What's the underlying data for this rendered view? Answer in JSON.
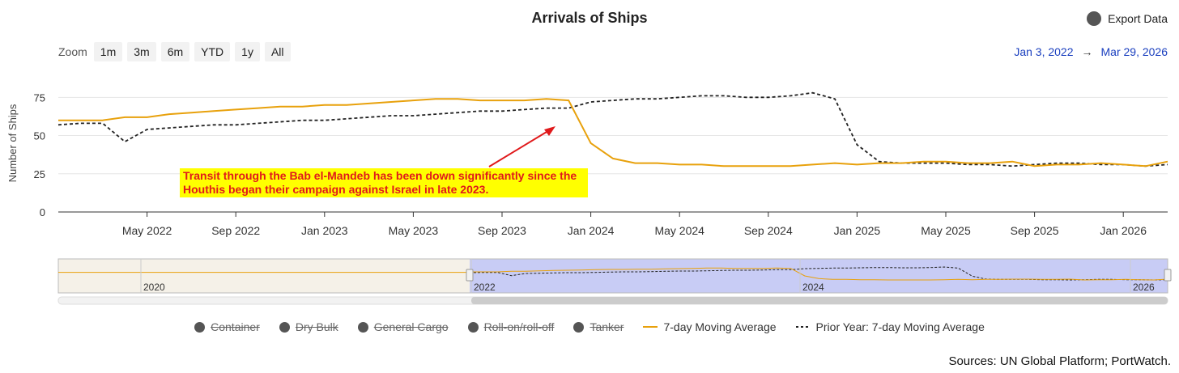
{
  "header": {
    "title": "Arrivals of Ships",
    "export_label": "Export Data"
  },
  "zoom": {
    "label": "Zoom",
    "buttons": [
      "1m",
      "3m",
      "6m",
      "YTD",
      "1y",
      "All"
    ]
  },
  "range": {
    "from": "Jan 3, 2022",
    "arrow": "→",
    "to": "Mar 29, 2026"
  },
  "annotation": "Transit through the Bab el-Mandeb has been down significantly since the Houthis began their campaign against Israel in late 2023.",
  "legend": [
    {
      "label": "Container",
      "disabled": true
    },
    {
      "label": "Dry Bulk",
      "disabled": true
    },
    {
      "label": "General Cargo",
      "disabled": true
    },
    {
      "label": "Roll-on/roll-off",
      "disabled": true
    },
    {
      "label": "Tanker",
      "disabled": true
    },
    {
      "label": "7-day Moving Average",
      "disabled": false
    },
    {
      "label": "Prior Year: 7-day Moving Average",
      "disabled": false
    }
  ],
  "source": "Sources: UN Global Platform; PortWatch.",
  "colors": {
    "current": "#e8a10c",
    "prior": "#222222",
    "navigator_selection": "#c8ccf5",
    "navigator_outside": "#f5f1e8",
    "range_text": "#1a3fbf",
    "annotation_bg": "#ffff00",
    "annotation_text": "#e0191b"
  },
  "navigator": {
    "labels": [
      "2020",
      "2022",
      "2024",
      "2026"
    ]
  },
  "chart_data": {
    "type": "line",
    "title": "Arrivals of Ships",
    "xlabel": "",
    "ylabel": "Number of Ships",
    "ylim": [
      0,
      90
    ],
    "yticks": [
      0,
      25,
      50,
      75
    ],
    "xticks": [
      "May 2022",
      "Sep 2022",
      "Jan 2023",
      "May 2023",
      "Sep 2023",
      "Jan 2024",
      "May 2024",
      "Sep 2024",
      "Jan 2025",
      "May 2025",
      "Sep 2025",
      "Jan 2026"
    ],
    "grid": true,
    "legend_position": "bottom",
    "x": [
      "2022-01",
      "2022-02",
      "2022-03",
      "2022-04",
      "2022-05",
      "2022-06",
      "2022-07",
      "2022-08",
      "2022-09",
      "2022-10",
      "2022-11",
      "2022-12",
      "2023-01",
      "2023-02",
      "2023-03",
      "2023-04",
      "2023-05",
      "2023-06",
      "2023-07",
      "2023-08",
      "2023-09",
      "2023-10",
      "2023-11",
      "2023-12",
      "2024-01",
      "2024-02",
      "2024-03",
      "2024-04",
      "2024-05",
      "2024-06",
      "2024-07",
      "2024-08",
      "2024-09",
      "2024-10",
      "2024-11",
      "2024-12",
      "2025-01",
      "2025-02",
      "2025-03",
      "2025-04",
      "2025-05",
      "2025-06",
      "2025-07",
      "2025-08",
      "2025-09",
      "2025-10",
      "2025-11",
      "2025-12",
      "2026-01",
      "2026-02",
      "2026-03"
    ],
    "series": [
      {
        "name": "7-day Moving Average",
        "style": "solid",
        "values": [
          60,
          60,
          60,
          62,
          62,
          64,
          65,
          66,
          67,
          68,
          69,
          69,
          70,
          70,
          71,
          72,
          73,
          74,
          74,
          73,
          73,
          73,
          74,
          73,
          45,
          35,
          32,
          32,
          31,
          31,
          30,
          30,
          30,
          30,
          31,
          32,
          31,
          32,
          32,
          33,
          33,
          32,
          32,
          33,
          30,
          31,
          31,
          32,
          31,
          30,
          33
        ]
      },
      {
        "name": "Prior Year: 7-day Moving Average",
        "style": "dashed",
        "values": [
          57,
          58,
          58,
          46,
          54,
          55,
          56,
          57,
          57,
          58,
          59,
          60,
          60,
          61,
          62,
          63,
          63,
          64,
          65,
          66,
          66,
          67,
          68,
          68,
          72,
          73,
          74,
          74,
          75,
          76,
          76,
          75,
          75,
          76,
          78,
          74,
          44,
          33,
          32,
          32,
          32,
          31,
          31,
          30,
          31,
          32,
          32,
          31,
          31,
          30,
          31
        ]
      }
    ]
  }
}
